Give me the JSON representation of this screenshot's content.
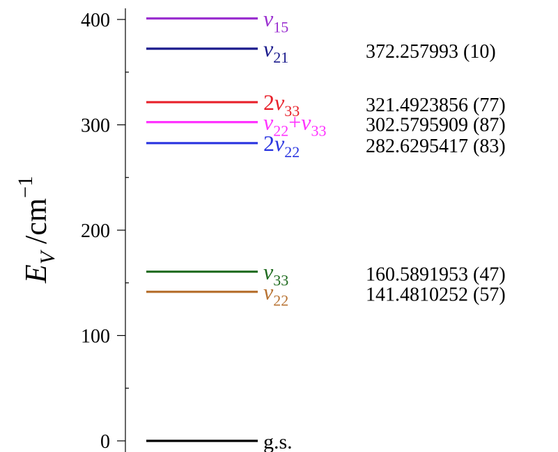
{
  "chart_data": {
    "type": "energy-level-diagram",
    "ylim": [
      0,
      400
    ],
    "y_ticks": [
      0,
      100,
      200,
      300,
      400
    ],
    "y_minor_step": 50,
    "ylabel": {
      "symbol": "E",
      "subscript": "V",
      "unit": "/cm",
      "exponent": "−1"
    },
    "levels": [
      {
        "id": "nu15",
        "energy": 401.0,
        "color": "#9b30d0",
        "label": [
          [
            "",
            "ν"
          ],
          [
            "sub",
            "15"
          ]
        ],
        "value": ""
      },
      {
        "id": "nu21",
        "energy": 372.257993,
        "color": "#1a1a8c",
        "label": [
          [
            "",
            "ν"
          ],
          [
            "sub",
            "21"
          ]
        ],
        "value": "372.257993 (10)"
      },
      {
        "id": "2nu33",
        "energy": 321.4923856,
        "color": "#e8202a",
        "label": [
          [
            "n",
            "2"
          ],
          [
            "",
            "ν"
          ],
          [
            "sub",
            "33"
          ]
        ],
        "value": "321.4923856 (77)"
      },
      {
        "id": "nu22_nu33",
        "energy": 302.5795909,
        "color": "#ff33ff",
        "label": [
          [
            "",
            "ν"
          ],
          [
            "sub",
            "22"
          ],
          [
            "n",
            "+"
          ],
          [
            "",
            "ν"
          ],
          [
            "sub",
            "33"
          ]
        ],
        "value": "302.5795909 (87)"
      },
      {
        "id": "2nu22",
        "energy": 282.6295417,
        "color": "#2a35e0",
        "label": [
          [
            "n",
            "2"
          ],
          [
            "",
            "ν"
          ],
          [
            "sub",
            "22"
          ]
        ],
        "value": "282.6295417 (83)"
      },
      {
        "id": "nu33",
        "energy": 160.5891953,
        "color": "#1f6b1f",
        "label": [
          [
            "",
            "ν"
          ],
          [
            "sub",
            "33"
          ]
        ],
        "value": "160.5891953 (47)"
      },
      {
        "id": "nu22",
        "energy": 141.4810252,
        "color": "#b87333",
        "label": [
          [
            "",
            "ν"
          ],
          [
            "sub",
            "22"
          ]
        ],
        "value": "141.4810252 (57)"
      },
      {
        "id": "gs",
        "energy": 0,
        "color": "#000000",
        "label": [
          [
            "n",
            "g.s."
          ]
        ],
        "value": ""
      }
    ]
  }
}
